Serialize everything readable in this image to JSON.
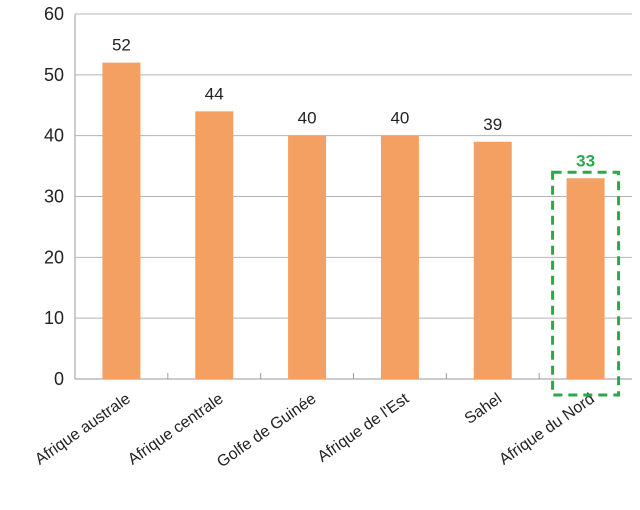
{
  "chart_data": {
    "type": "bar",
    "title": "",
    "xlabel": "",
    "ylabel": "",
    "categories": [
      "Afrique australe",
      "Afrique centrale",
      "Golfe de Guinée",
      "Afrique de l'Est",
      "Sahel",
      "Afrique du Nord"
    ],
    "values": [
      52,
      44,
      40,
      40,
      39,
      33
    ],
    "ylim": [
      0,
      60
    ],
    "yticks": [
      0,
      10,
      20,
      30,
      40,
      50,
      60
    ],
    "grid": true,
    "highlight_category": "Afrique du Nord",
    "colors": {
      "bar": "#f4a062",
      "highlight": "#2aa84a",
      "grid": "#b4b4b4",
      "axis": "#9a9a9a"
    }
  }
}
